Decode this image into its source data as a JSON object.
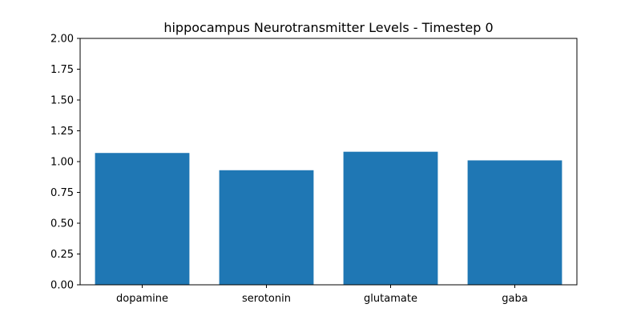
{
  "chart_data": {
    "type": "bar",
    "title": "hippocampus Neurotransmitter Levels - Timestep 0",
    "xlabel": "",
    "ylabel": "",
    "categories": [
      "dopamine",
      "serotonin",
      "glutamate",
      "gaba"
    ],
    "values": [
      1.07,
      0.93,
      1.08,
      1.01
    ],
    "ylim": [
      0,
      2.0
    ],
    "yticks": [
      "0.00",
      "0.25",
      "0.50",
      "0.75",
      "1.00",
      "1.25",
      "1.50",
      "1.75",
      "2.00"
    ],
    "grid": false,
    "legend": "none",
    "bar_color": "#1f77b4"
  }
}
